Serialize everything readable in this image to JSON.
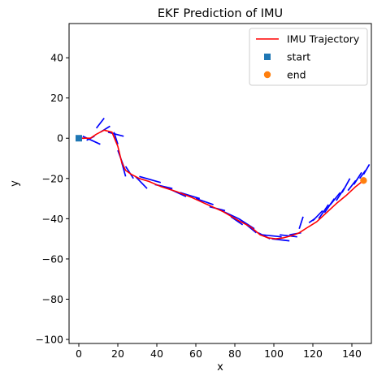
{
  "chart_data": {
    "type": "line",
    "title": "EKF Prediction of IMU",
    "xlabel": "x",
    "ylabel": "y",
    "xlim": [
      -5,
      150
    ],
    "ylim": [
      -102,
      57
    ],
    "x_ticks": [
      "0",
      "20",
      "40",
      "60",
      "80",
      "100",
      "120",
      "140"
    ],
    "x_tick_values": [
      0,
      20,
      40,
      60,
      80,
      100,
      120,
      140
    ],
    "y_ticks": [
      "−100",
      "−80",
      "−60",
      "−40",
      "−20",
      "0",
      "20",
      "40"
    ],
    "y_tick_values": [
      -100,
      -80,
      -60,
      -40,
      -20,
      0,
      20,
      40
    ],
    "grid": false,
    "legend_position": "top-right",
    "series": [
      {
        "name": "IMU Trajectory",
        "kind": "line",
        "color": "#ff0000",
        "points": [
          [
            0,
            0
          ],
          [
            3,
            0
          ],
          [
            6,
            0
          ],
          [
            9,
            2
          ],
          [
            13,
            4
          ],
          [
            17,
            3
          ],
          [
            20,
            -4
          ],
          [
            22,
            -12
          ],
          [
            24,
            -16
          ],
          [
            27,
            -18
          ],
          [
            31,
            -20
          ],
          [
            36,
            -21.5
          ],
          [
            42,
            -24
          ],
          [
            50,
            -26.5
          ],
          [
            58,
            -29.5
          ],
          [
            66,
            -33
          ],
          [
            74,
            -36.5
          ],
          [
            82,
            -41
          ],
          [
            88,
            -44
          ],
          [
            93,
            -48
          ],
          [
            97,
            -49.5
          ],
          [
            101,
            -50
          ],
          [
            105,
            -49.5
          ],
          [
            109,
            -48.5
          ],
          [
            113,
            -47
          ],
          [
            117,
            -44.5
          ],
          [
            122,
            -41.5
          ],
          [
            127,
            -37
          ],
          [
            132,
            -32.5
          ],
          [
            137,
            -28.5
          ],
          [
            142,
            -24
          ],
          [
            146,
            -21
          ]
        ]
      },
      {
        "name": "start",
        "kind": "marker",
        "marker": "square",
        "color": "#1f77b4",
        "points": [
          [
            0,
            0
          ]
        ]
      },
      {
        "name": "end",
        "kind": "marker",
        "marker": "circle",
        "color": "#ff7f0e",
        "points": [
          [
            146,
            -21
          ]
        ]
      }
    ],
    "heading_segments": {
      "color": "#0000ff",
      "segments": [
        [
          [
            -1,
            0
          ],
          [
            3,
            0
          ]
        ],
        [
          [
            2,
            1
          ],
          [
            11,
            -3
          ]
        ],
        [
          [
            4,
            -1
          ],
          [
            8,
            1
          ]
        ],
        [
          [
            9,
            5
          ],
          [
            13,
            10
          ]
        ],
        [
          [
            11,
            3
          ],
          [
            16,
            6
          ]
        ],
        [
          [
            15,
            3
          ],
          [
            23,
            1
          ]
        ],
        [
          [
            18,
            3
          ],
          [
            20,
            -3
          ]
        ],
        [
          [
            20,
            -6
          ],
          [
            23,
            -14
          ]
        ],
        [
          [
            22,
            -12
          ],
          [
            24,
            -19
          ]
        ],
        [
          [
            24,
            -14
          ],
          [
            28,
            -20
          ]
        ],
        [
          [
            29,
            -19
          ],
          [
            35,
            -25
          ]
        ],
        [
          [
            31,
            -19
          ],
          [
            42,
            -22
          ]
        ],
        [
          [
            39,
            -23
          ],
          [
            48,
            -25
          ]
        ],
        [
          [
            46,
            -25
          ],
          [
            55,
            -29
          ]
        ],
        [
          [
            52,
            -27
          ],
          [
            62,
            -30
          ]
        ],
        [
          [
            60,
            -30
          ],
          [
            69,
            -33
          ]
        ],
        [
          [
            67,
            -34
          ],
          [
            75,
            -36
          ]
        ],
        [
          [
            71,
            -35
          ],
          [
            82,
            -40
          ]
        ],
        [
          [
            78,
            -39
          ],
          [
            84,
            -43
          ]
        ],
        [
          [
            82,
            -40
          ],
          [
            90,
            -45
          ]
        ],
        [
          [
            86,
            -43
          ],
          [
            91,
            -47
          ]
        ],
        [
          [
            92,
            -47
          ],
          [
            98,
            -50
          ]
        ],
        [
          [
            94,
            -48
          ],
          [
            104,
            -49
          ]
        ],
        [
          [
            99,
            -50
          ],
          [
            108,
            -51
          ]
        ],
        [
          [
            103,
            -48
          ],
          [
            112,
            -49
          ]
        ],
        [
          [
            108,
            -48
          ],
          [
            114,
            -47
          ]
        ],
        [
          [
            113,
            -45
          ],
          [
            115,
            -39
          ]
        ],
        [
          [
            118,
            -42
          ],
          [
            121,
            -40
          ]
        ],
        [
          [
            120,
            -41
          ],
          [
            125,
            -36
          ]
        ],
        [
          [
            123,
            -40
          ],
          [
            128,
            -33
          ]
        ],
        [
          [
            126,
            -37
          ],
          [
            131,
            -30
          ]
        ],
        [
          [
            129,
            -33
          ],
          [
            134,
            -27
          ]
        ],
        [
          [
            132,
            -31
          ],
          [
            136,
            -25
          ]
        ],
        [
          [
            135,
            -27
          ],
          [
            139,
            -20
          ]
        ],
        [
          [
            138,
            -26
          ],
          [
            142,
            -21
          ]
        ],
        [
          [
            141,
            -23
          ],
          [
            145,
            -17
          ]
        ],
        [
          [
            144,
            -20
          ],
          [
            147,
            -16
          ]
        ],
        [
          [
            146,
            -18
          ],
          [
            149,
            -13
          ]
        ]
      ]
    }
  }
}
